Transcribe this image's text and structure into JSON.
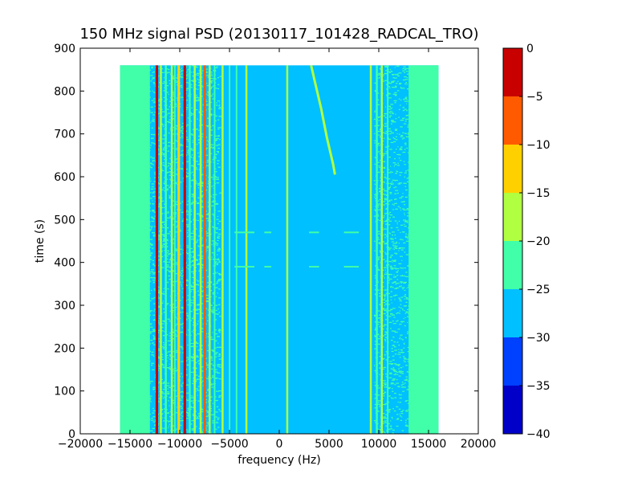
{
  "chart_data": {
    "type": "heatmap",
    "title": "150 MHz signal PSD (20130117_101428_RADCAL_TRO)",
    "xlabel": "frequency (Hz)",
    "ylabel": "time (s)",
    "xlim": [
      -20000,
      20000
    ],
    "ylim": [
      0,
      900
    ],
    "xticks": [
      -20000,
      -15000,
      -10000,
      -5000,
      0,
      5000,
      10000,
      15000,
      20000
    ],
    "xtick_labels": [
      "−20000",
      "−15000",
      "−10000",
      "−5000",
      "0",
      "5000",
      "10000",
      "15000",
      "20000"
    ],
    "yticks": [
      0,
      100,
      200,
      300,
      400,
      500,
      600,
      700,
      800,
      900
    ],
    "ytick_labels": [
      "0",
      "100",
      "200",
      "300",
      "400",
      "500",
      "600",
      "700",
      "800",
      "900"
    ],
    "data_extent": {
      "x": [
        -16000,
        16000
      ],
      "y": [
        0,
        860
      ]
    },
    "grid": false,
    "colorbar": {
      "levels": [
        -40,
        -35,
        -30,
        -25,
        -20,
        -15,
        -10,
        -5,
        0
      ],
      "tick_labels": [
        "−40",
        "−35",
        "−30",
        "−25",
        "−20",
        "−15",
        "−10",
        "−5",
        "0"
      ],
      "colors": [
        "#0000c8",
        "#0040ff",
        "#00c0ff",
        "#40ffa8",
        "#b0ff40",
        "#ffd000",
        "#ff5a00",
        "#c80000"
      ]
    },
    "background_level": -27.5,
    "edge_bands": [
      {
        "x_range": [
          -16000,
          -13000
        ],
        "level": -22.5
      },
      {
        "x_range": [
          13000,
          16000
        ],
        "level": -22.5
      }
    ],
    "speckle_regions": [
      {
        "x_range": [
          -15000,
          -6000
        ],
        "level": -22.5
      },
      {
        "x_range": [
          9500,
          13000
        ],
        "level": -22.5
      }
    ],
    "vertical_lines": [
      {
        "x": -12300,
        "width": 250,
        "level": -2.5
      },
      {
        "x": -11900,
        "width": 200,
        "level": -17.5
      },
      {
        "x": -11400,
        "width": 200,
        "level": -22.5
      },
      {
        "x": -10800,
        "width": 200,
        "level": -17.5
      },
      {
        "x": -10500,
        "width": 150,
        "level": -22.5
      },
      {
        "x": -10100,
        "width": 250,
        "level": -12.5
      },
      {
        "x": -9500,
        "width": 250,
        "level": -2.5
      },
      {
        "x": -9000,
        "width": 200,
        "level": -22.5
      },
      {
        "x": -8500,
        "width": 200,
        "level": -17.5
      },
      {
        "x": -7900,
        "width": 200,
        "level": -17.5
      },
      {
        "x": -7500,
        "width": 250,
        "level": -7.5
      },
      {
        "x": -7000,
        "width": 200,
        "level": -17.5
      },
      {
        "x": -6500,
        "width": 150,
        "level": -22.5
      },
      {
        "x": -5700,
        "width": 200,
        "level": -17.5
      },
      {
        "x": -5000,
        "width": 150,
        "level": -22.5
      },
      {
        "x": -4300,
        "width": 150,
        "level": -22.5
      },
      {
        "x": -3300,
        "width": 200,
        "level": -17.5
      },
      {
        "x": 800,
        "width": 200,
        "level": -17.5
      },
      {
        "x": 9200,
        "width": 200,
        "level": -17.5
      },
      {
        "x": 9800,
        "width": 200,
        "level": -22.5
      },
      {
        "x": 10300,
        "width": 200,
        "level": -17.5
      },
      {
        "x": 10900,
        "width": 150,
        "level": -22.5
      }
    ],
    "tone_curve": {
      "level": -17.5,
      "points": [
        [
          3200,
          860
        ],
        [
          3600,
          820
        ],
        [
          4200,
          760
        ],
        [
          4800,
          690
        ],
        [
          5400,
          630
        ],
        [
          5600,
          605
        ]
      ]
    },
    "horizontal_segments": [
      {
        "y": 470,
        "x_ranges": [
          [
            -4500,
            -2500
          ],
          [
            -1500,
            -800
          ],
          [
            3000,
            4000
          ],
          [
            6500,
            8000
          ]
        ],
        "level": -22.5
      },
      {
        "y": 390,
        "x_ranges": [
          [
            -4500,
            -2500
          ],
          [
            -1500,
            -800
          ],
          [
            3000,
            4000
          ],
          [
            6500,
            8000
          ]
        ],
        "level": -22.5
      }
    ]
  }
}
